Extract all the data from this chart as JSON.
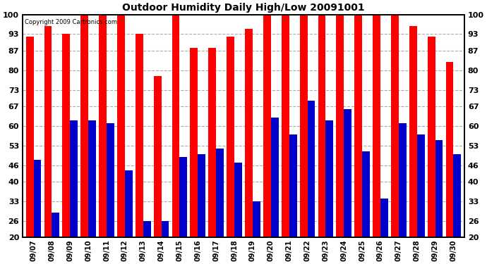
{
  "title": "Outdoor Humidity Daily High/Low 20091001",
  "copyright": "Copyright 2009 Cartronics.com",
  "dates": [
    "09/07",
    "09/08",
    "09/09",
    "09/10",
    "09/11",
    "09/12",
    "09/13",
    "09/14",
    "09/15",
    "09/16",
    "09/17",
    "09/18",
    "09/19",
    "09/20",
    "09/21",
    "09/22",
    "09/23",
    "09/24",
    "09/25",
    "09/26",
    "09/27",
    "09/28",
    "09/29",
    "09/30"
  ],
  "highs": [
    92,
    96,
    93,
    100,
    100,
    100,
    93,
    78,
    100,
    88,
    88,
    92,
    95,
    100,
    100,
    100,
    100,
    100,
    100,
    100,
    100,
    96,
    92,
    83
  ],
  "lows": [
    48,
    29,
    62,
    62,
    61,
    44,
    26,
    26,
    49,
    50,
    52,
    47,
    33,
    63,
    57,
    69,
    62,
    66,
    51,
    34,
    61,
    57,
    55,
    50
  ],
  "high_color": "#ff0000",
  "low_color": "#0000cc",
  "bg_color": "#ffffff",
  "grid_color": "#aaaaaa",
  "yticks": [
    20,
    26,
    33,
    40,
    46,
    53,
    60,
    67,
    73,
    80,
    87,
    93,
    100
  ],
  "ymin": 20,
  "ymax": 100,
  "bar_width": 0.42,
  "figwidth": 6.9,
  "figheight": 3.75,
  "dpi": 100
}
